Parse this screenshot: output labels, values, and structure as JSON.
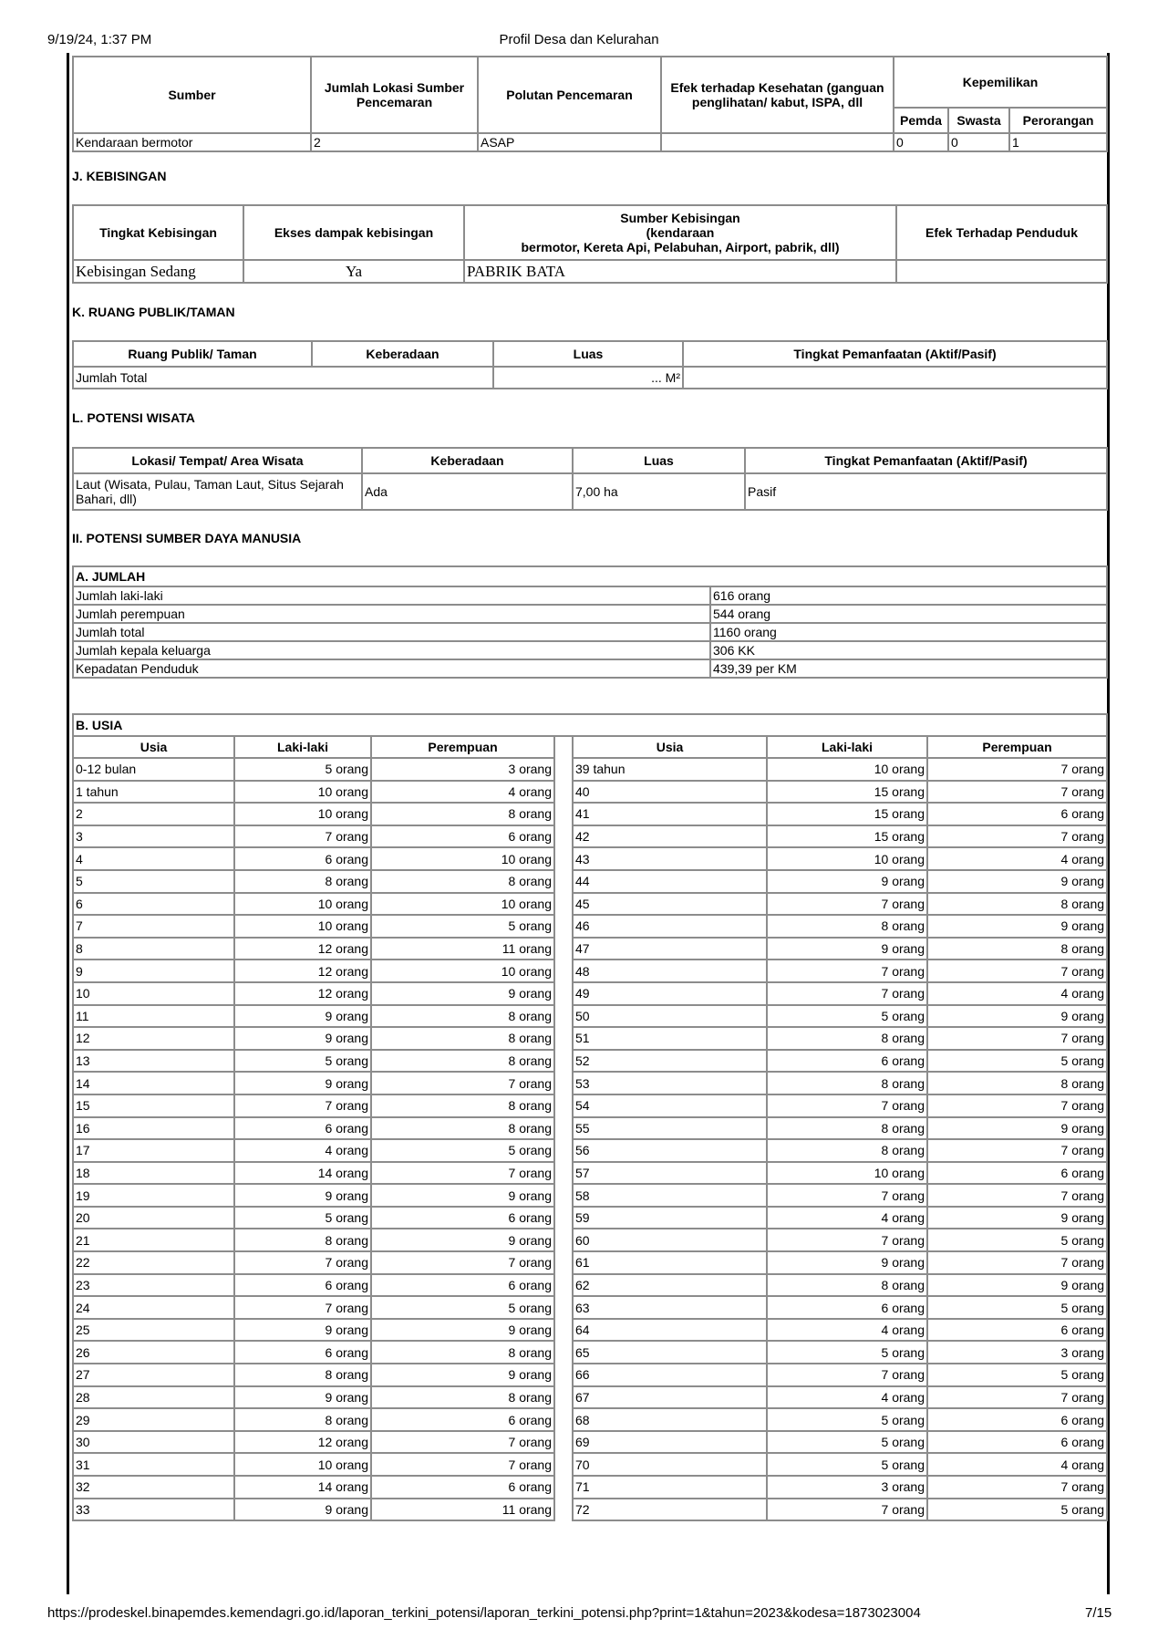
{
  "header": {
    "datetime": "9/19/24, 1:37 PM",
    "title": "Profil Desa dan Kelurahan"
  },
  "footer": {
    "url": "https://prodeskel.binapemdes.kemendagri.go.id/laporan_terkini_potensi/laporan_terkini_potensi.php?print=1&tahun=2023&kodesa=1873023004",
    "page": "7/15"
  },
  "pencemaran": {
    "headers": {
      "sumber": "Sumber",
      "jumlah": "Jumlah Lokasi Sumber Pencemaran",
      "polutan": "Polutan Pencemaran",
      "efek": "Efek terhadap Kesehatan (ganguan penglihatan/ kabut, ISPA, dll",
      "kepemilikan": "Kepemilikan",
      "pemda": "Pemda",
      "swasta": "Swasta",
      "perorangan": "Perorangan"
    },
    "row": {
      "sumber": "Kendaraan bermotor",
      "jumlah": "2",
      "polutan": "ASAP",
      "efek": "",
      "pemda": "0",
      "swasta": "0",
      "perorangan": "1"
    }
  },
  "kebisingan": {
    "title": "J. KEBISINGAN",
    "headers": {
      "tingkat": "Tingkat Kebisingan",
      "ekses": "Ekses dampak kebisingan",
      "sumber_1": "Sumber Kebisingan",
      "sumber_2": "(kendaraan",
      "sumber_3": "bermotor, Kereta Api, Pelabuhan, Airport, pabrik, dll)",
      "efek": "Efek Terhadap Penduduk"
    },
    "row": {
      "tingkat": "Kebisingan Sedang",
      "ekses": "Ya",
      "sumber": "PABRIK BATA",
      "efek": ""
    }
  },
  "ruang_publik": {
    "title": "K. RUANG PUBLIK/TAMAN",
    "headers": {
      "ruang": "Ruang Publik/ Taman",
      "keberadaan": "Keberadaan",
      "luas": "Luas",
      "tingkat": "Tingkat Pemanfaatan (Aktif/Pasif)"
    },
    "row": {
      "label": "Jumlah Total",
      "luas": "... M²",
      "tingkat": ""
    }
  },
  "wisata": {
    "title": "L. POTENSI WISATA",
    "headers": {
      "lokasi": "Lokasi/ Tempat/ Area Wisata",
      "keberadaan": "Keberadaan",
      "luas": "Luas",
      "tingkat": "Tingkat Pemanfaatan (Aktif/Pasif)"
    },
    "row": {
      "lokasi": "Laut (Wisata, Pulau, Taman Laut, Situs Sejarah Bahari, dll)",
      "keberadaan": "Ada",
      "luas": "7,00 ha",
      "tingkat": "Pasif"
    }
  },
  "sdm": {
    "title": "II. POTENSI SUMBER DAYA MANUSIA",
    "jumlah": {
      "title": "A. JUMLAH",
      "rows": [
        {
          "label": "Jumlah laki-laki",
          "value": "616 orang"
        },
        {
          "label": "Jumlah perempuan",
          "value": "544 orang"
        },
        {
          "label": "Jumlah total",
          "value": "1160 orang"
        },
        {
          "label": "Jumlah kepala keluarga",
          "value": "306 KK"
        },
        {
          "label": "Kepadatan Penduduk",
          "value": "439,39 per KM"
        }
      ]
    },
    "usia": {
      "title": "B. USIA",
      "headers": {
        "usia": "Usia",
        "laki": "Laki-laki",
        "perempuan": "Perempuan"
      },
      "rows": [
        [
          "0-12 bulan",
          "5 orang",
          "3 orang",
          "39 tahun",
          "10 orang",
          "7 orang"
        ],
        [
          "1 tahun",
          "10 orang",
          "4 orang",
          "40",
          "15 orang",
          "7 orang"
        ],
        [
          "2",
          "10 orang",
          "8 orang",
          "41",
          "15 orang",
          "6 orang"
        ],
        [
          "3",
          "7 orang",
          "6 orang",
          "42",
          "15 orang",
          "7 orang"
        ],
        [
          "4",
          "6 orang",
          "10 orang",
          "43",
          "10 orang",
          "4 orang"
        ],
        [
          "5",
          "8 orang",
          "8 orang",
          "44",
          "9 orang",
          "9 orang"
        ],
        [
          "6",
          "10 orang",
          "10 orang",
          "45",
          "7 orang",
          "8 orang"
        ],
        [
          "7",
          "10 orang",
          "5 orang",
          "46",
          "8 orang",
          "9 orang"
        ],
        [
          "8",
          "12 orang",
          "11 orang",
          "47",
          "9 orang",
          "8 orang"
        ],
        [
          "9",
          "12 orang",
          "10 orang",
          "48",
          "7 orang",
          "7 orang"
        ],
        [
          "10",
          "12 orang",
          "9 orang",
          "49",
          "7 orang",
          "4 orang"
        ],
        [
          "11",
          "9 orang",
          "8 orang",
          "50",
          "5 orang",
          "9 orang"
        ],
        [
          "12",
          "9 orang",
          "8 orang",
          "51",
          "8 orang",
          "7 orang"
        ],
        [
          "13",
          "5 orang",
          "8 orang",
          "52",
          "6 orang",
          "5 orang"
        ],
        [
          "14",
          "9 orang",
          "7 orang",
          "53",
          "8 orang",
          "8 orang"
        ],
        [
          "15",
          "7 orang",
          "8 orang",
          "54",
          "7 orang",
          "7 orang"
        ],
        [
          "16",
          "6 orang",
          "8 orang",
          "55",
          "8 orang",
          "9 orang"
        ],
        [
          "17",
          "4 orang",
          "5 orang",
          "56",
          "8 orang",
          "7 orang"
        ],
        [
          "18",
          "14 orang",
          "7 orang",
          "57",
          "10 orang",
          "6 orang"
        ],
        [
          "19",
          "9 orang",
          "9 orang",
          "58",
          "7 orang",
          "7 orang"
        ],
        [
          "20",
          "5 orang",
          "6 orang",
          "59",
          "4 orang",
          "9 orang"
        ],
        [
          "21",
          "8 orang",
          "9 orang",
          "60",
          "7 orang",
          "5 orang"
        ],
        [
          "22",
          "7 orang",
          "7 orang",
          "61",
          "9 orang",
          "7 orang"
        ],
        [
          "23",
          "6 orang",
          "6 orang",
          "62",
          "8 orang",
          "9 orang"
        ],
        [
          "24",
          "7 orang",
          "5 orang",
          "63",
          "6 orang",
          "5 orang"
        ],
        [
          "25",
          "9 orang",
          "9 orang",
          "64",
          "4 orang",
          "6 orang"
        ],
        [
          "26",
          "6 orang",
          "8 orang",
          "65",
          "5 orang",
          "3 orang"
        ],
        [
          "27",
          "8 orang",
          "9 orang",
          "66",
          "7 orang",
          "5 orang"
        ],
        [
          "28",
          "9 orang",
          "8 orang",
          "67",
          "4 orang",
          "7 orang"
        ],
        [
          "29",
          "8 orang",
          "6 orang",
          "68",
          "5 orang",
          "6 orang"
        ],
        [
          "30",
          "12 orang",
          "7 orang",
          "69",
          "5 orang",
          "6 orang"
        ],
        [
          "31",
          "10 orang",
          "7 orang",
          "70",
          "5 orang",
          "4 orang"
        ],
        [
          "32",
          "14 orang",
          "6 orang",
          "71",
          "3 orang",
          "7 orang"
        ],
        [
          "33",
          "9 orang",
          "11 orang",
          "72",
          "7 orang",
          "5 orang"
        ]
      ]
    }
  }
}
